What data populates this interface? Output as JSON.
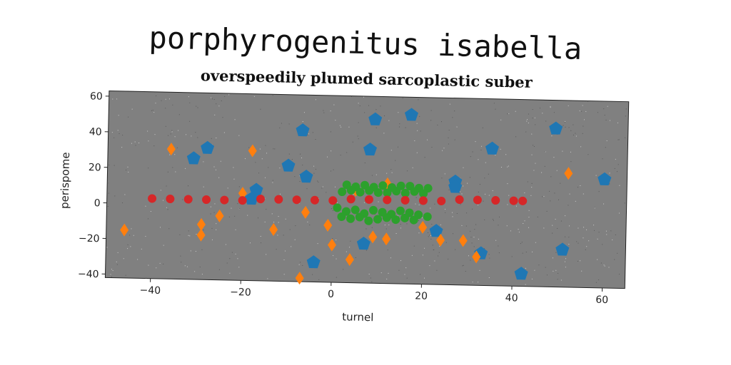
{
  "page": {
    "title": "porphyrogenitus isabella"
  },
  "chart_data": {
    "type": "scatter",
    "title": "overspeedily plumed sarcoplastic suber",
    "xlabel": "turnel",
    "ylabel": "perispome",
    "xlim": [
      -50,
      65
    ],
    "ylim": [
      -42,
      63
    ],
    "x_ticks": [
      -40,
      -20,
      0,
      20,
      40,
      60
    ],
    "y_ticks": [
      -40,
      -20,
      0,
      20,
      40,
      60
    ],
    "tick_labels": {
      "x": [
        "−40",
        "−20",
        "0",
        "20",
        "40",
        "60"
      ],
      "y": [
        "−40",
        "−20",
        "0",
        "20",
        "40",
        "60"
      ]
    },
    "background": "#808080",
    "grid": false,
    "legend": "none",
    "series": [
      {
        "color": "#1f77b4",
        "marker": "pentagon",
        "points": [
          [
            9,
            50
          ],
          [
            17,
            53
          ],
          [
            49,
            47
          ],
          [
            -7,
            43
          ],
          [
            8,
            33
          ],
          [
            -28,
            32
          ],
          [
            -31,
            26
          ],
          [
            35,
            35
          ],
          [
            -10,
            23
          ],
          [
            -6,
            17
          ],
          [
            27,
            16
          ],
          [
            27,
            13
          ],
          [
            60,
            19
          ],
          [
            -17,
            9
          ],
          [
            -18,
            4
          ],
          [
            7,
            -20
          ],
          [
            33,
            -24
          ],
          [
            51,
            -21
          ],
          [
            23,
            -12
          ],
          [
            -4,
            -31
          ],
          [
            42,
            -35
          ]
        ]
      },
      {
        "color": "#ff7f0e",
        "marker": "diamond",
        "points": [
          [
            -36,
            31
          ],
          [
            -18,
            31
          ],
          [
            52,
            22
          ],
          [
            12,
            14
          ],
          [
            -20,
            7
          ],
          [
            -46,
            -15
          ],
          [
            -29,
            -11
          ],
          [
            -29,
            -17
          ],
          [
            -25,
            -6
          ],
          [
            -13,
            -13
          ],
          [
            -6,
            -3
          ],
          [
            -1,
            -10
          ],
          [
            0,
            -21
          ],
          [
            4,
            -29
          ],
          [
            9,
            -16
          ],
          [
            12,
            -17
          ],
          [
            20,
            -10
          ],
          [
            24,
            -17
          ],
          [
            29,
            -17
          ],
          [
            32,
            -26
          ],
          [
            -7,
            -40
          ],
          [
            5,
            10
          ]
        ]
      },
      {
        "color": "#2ca02c",
        "marker": "circle",
        "points": [
          [
            3,
            13
          ],
          [
            5,
            12
          ],
          [
            7,
            13
          ],
          [
            9,
            12
          ],
          [
            11,
            13
          ],
          [
            13,
            12
          ],
          [
            15,
            13
          ],
          [
            17,
            13
          ],
          [
            19,
            12
          ],
          [
            21,
            12
          ],
          [
            2,
            9
          ],
          [
            4,
            10
          ],
          [
            6,
            9
          ],
          [
            8,
            10
          ],
          [
            10,
            9
          ],
          [
            12,
            9
          ],
          [
            14,
            10
          ],
          [
            16,
            9
          ],
          [
            18,
            10
          ],
          [
            20,
            9
          ],
          [
            1,
            0
          ],
          [
            3,
            -2
          ],
          [
            5,
            -1
          ],
          [
            7,
            -3
          ],
          [
            9,
            -1
          ],
          [
            11,
            -2
          ],
          [
            13,
            -3
          ],
          [
            15,
            -1
          ],
          [
            17,
            -2
          ],
          [
            19,
            -3
          ],
          [
            2,
            -5
          ],
          [
            4,
            -6
          ],
          [
            6,
            -5
          ],
          [
            8,
            -7
          ],
          [
            10,
            -6
          ],
          [
            12,
            -5
          ],
          [
            14,
            -6
          ],
          [
            16,
            -5
          ],
          [
            18,
            -6
          ],
          [
            21,
            -4
          ]
        ]
      },
      {
        "color": "#d62728",
        "marker": "circle",
        "points": [
          [
            -40,
            3
          ],
          [
            -36,
            3
          ],
          [
            -32,
            3
          ],
          [
            -28,
            3
          ],
          [
            -24,
            3
          ],
          [
            -20,
            3
          ],
          [
            -16,
            4
          ],
          [
            -12,
            4
          ],
          [
            -8,
            4
          ],
          [
            -4,
            4
          ],
          [
            0,
            4
          ],
          [
            4,
            5
          ],
          [
            8,
            5
          ],
          [
            12,
            5
          ],
          [
            16,
            5
          ],
          [
            20,
            5
          ],
          [
            24,
            5
          ],
          [
            28,
            6
          ],
          [
            32,
            6
          ],
          [
            36,
            6
          ],
          [
            40,
            6
          ],
          [
            42,
            6
          ]
        ]
      }
    ]
  }
}
